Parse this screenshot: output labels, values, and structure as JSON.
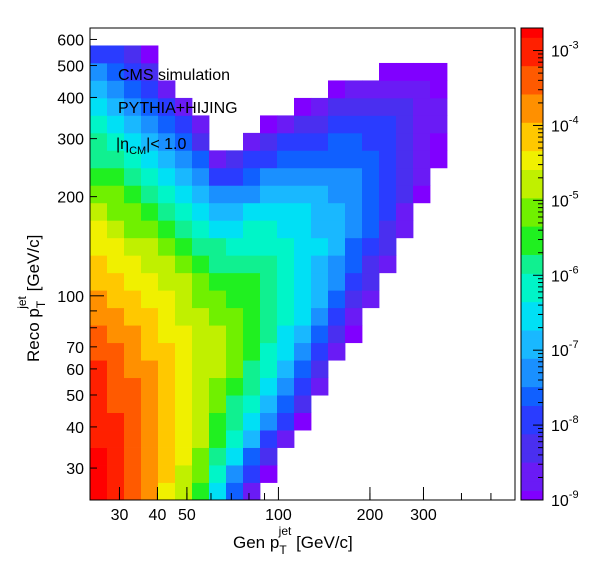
{
  "chart_data": {
    "type": "heatmap",
    "x_scale": "log",
    "y_scale": "log",
    "z_scale": "log",
    "xlim": [
      24,
      600
    ],
    "ylim": [
      24,
      650
    ],
    "zlim": [
      1e-09,
      0.002
    ],
    "x_ticks": [
      {
        "v": 30,
        "label": "30"
      },
      {
        "v": 40,
        "label": "40"
      },
      {
        "v": 50,
        "label": "50"
      },
      {
        "v": 100,
        "label": "100"
      },
      {
        "v": 200,
        "label": "200"
      },
      {
        "v": 300,
        "label": "300"
      }
    ],
    "y_ticks": [
      {
        "v": 30,
        "label": "30"
      },
      {
        "v": 40,
        "label": "40"
      },
      {
        "v": 50,
        "label": "50"
      },
      {
        "v": 60,
        "label": "60"
      },
      {
        "v": 70,
        "label": "70"
      },
      {
        "v": 100,
        "label": "100"
      },
      {
        "v": 200,
        "label": "200"
      },
      {
        "v": 300,
        "label": "300"
      },
      {
        "v": 400,
        "label": "400"
      },
      {
        "v": 500,
        "label": "500"
      },
      {
        "v": 600,
        "label": "600"
      }
    ],
    "xlabel": {
      "main": "Gen p",
      "sub": "T",
      "sup": "jet",
      "unit": " [GeV/c]"
    },
    "ylabel": {
      "main": "Reco p",
      "sub": "T",
      "sup": "jet",
      "unit": " [GeV/c]"
    },
    "colorbar": {
      "ticks": [
        {
          "exp": "-3"
        },
        {
          "exp": "-4"
        },
        {
          "exp": "-5"
        },
        {
          "exp": "-6"
        },
        {
          "exp": "-7"
        },
        {
          "exp": "-8"
        },
        {
          "exp": "-9"
        }
      ]
    },
    "annotations": {
      "line1": "CMS simulation",
      "line2": "PYTHIA+HIJING",
      "eta_pre": "|η",
      "eta_sub": "CM",
      "eta_post": "|< 1.0"
    }
  }
}
